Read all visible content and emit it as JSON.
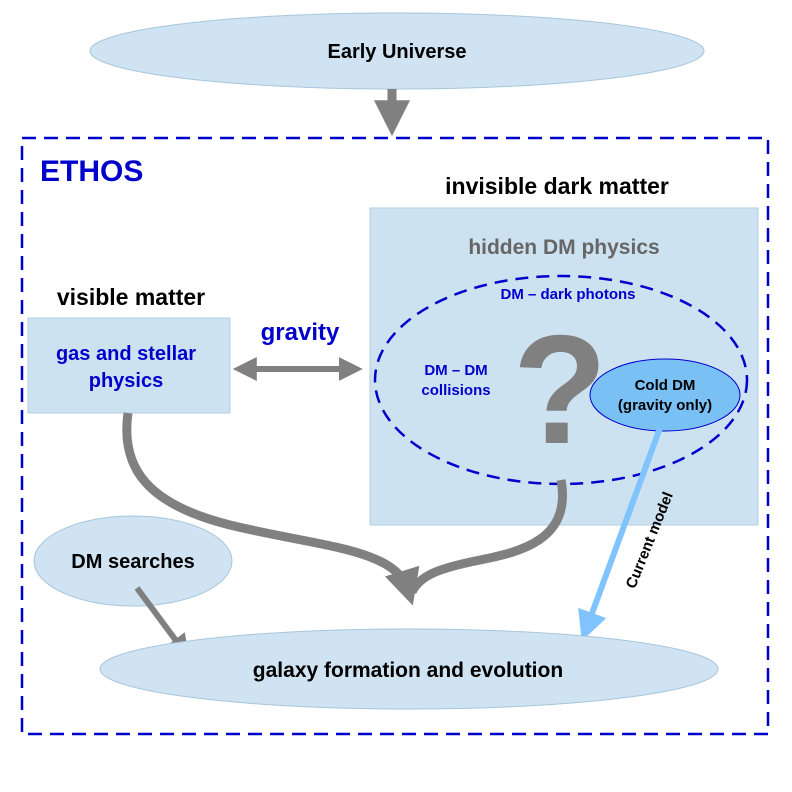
{
  "nodes": {
    "early_universe": "Early Universe",
    "ethos": "ETHOS",
    "invisible_dark_matter": "invisible dark matter",
    "hidden_dm_physics": "hidden DM physics",
    "dark_photons": "DM – dark photons",
    "dm_collisions_line1": "DM – DM",
    "dm_collisions_line2": "collisions",
    "question_mark": "?",
    "cold_dm_line1": "Cold DM",
    "cold_dm_line2": "(gravity only)",
    "visible_matter": "visible matter",
    "gas_stellar_line1": "gas and stellar",
    "gas_stellar_line2": "physics",
    "gravity": "gravity",
    "current_model": "Current model",
    "dm_searches": "DM searches",
    "galaxy_formation": "galaxy formation and evolution"
  },
  "colors": {
    "ellipse_fill": "#cfe3f2",
    "box_fill": "#cde2f0",
    "dashed_blue": "#0000cc",
    "text_blue": "#0000cc",
    "text_gray": "#666666",
    "arrow_gray": "#808080",
    "arrow_lightblue": "#7fc4ff",
    "cold_dm_fill": "#79c1f5"
  }
}
